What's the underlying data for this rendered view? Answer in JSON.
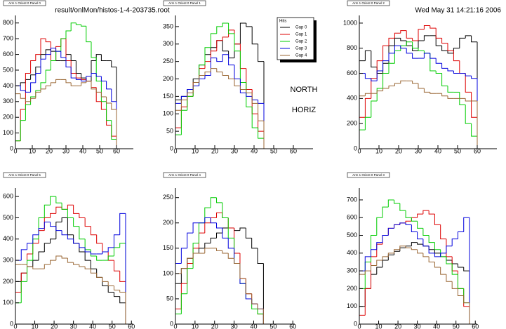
{
  "header": {
    "file": "result/onlMon/histos-1-4-203735.root",
    "date": "Wed May 31 14:21:16 2006"
  },
  "labels": [
    "NORTH",
    "HORIZ"
  ],
  "chart_data": [
    {
      "type": "histogram",
      "title": "Arm 1 Orient 0 Panel 0",
      "bins": [
        0,
        3,
        6,
        9,
        12,
        15,
        18,
        21,
        24,
        27,
        30,
        33,
        36,
        39,
        42,
        45,
        48,
        51,
        54,
        57,
        60,
        63
      ],
      "xlim": [
        0,
        70
      ],
      "xticks": [
        0,
        10,
        20,
        30,
        40,
        50,
        60
      ],
      "ylim": [
        0,
        848
      ],
      "yticks": [
        0,
        100,
        200,
        300,
        400,
        500,
        600,
        700,
        800
      ],
      "series": [
        {
          "color": "#000000",
          "values": [
            400,
            420,
            440,
            470,
            520,
            600,
            630,
            620,
            560,
            560,
            600,
            560,
            480,
            450,
            430,
            560,
            600,
            560,
            560,
            520,
            0
          ]
        },
        {
          "color": "#dd0000",
          "values": [
            50,
            250,
            480,
            560,
            600,
            700,
            680,
            560,
            650,
            700,
            560,
            480,
            450,
            440,
            430,
            390,
            300,
            250,
            150,
            80,
            0
          ]
        },
        {
          "color": "#00cc00",
          "values": [
            50,
            180,
            280,
            330,
            370,
            420,
            500,
            560,
            620,
            700,
            750,
            800,
            790,
            780,
            680,
            580,
            430,
            300,
            180,
            60,
            0
          ]
        },
        {
          "color": "#0000dd",
          "values": [
            400,
            370,
            360,
            420,
            480,
            570,
            600,
            640,
            620,
            580,
            520,
            450,
            440,
            430,
            460,
            480,
            460,
            430,
            380,
            300,
            0
          ]
        },
        {
          "color": "#996633",
          "values": [
            350,
            320,
            300,
            320,
            360,
            380,
            400,
            420,
            440,
            440,
            420,
            400,
            400,
            420,
            430,
            380,
            360,
            330,
            290,
            250,
            0
          ]
        }
      ]
    },
    {
      "type": "histogram",
      "title": "Arm 1 Orient 0 Panel 1",
      "bins": [
        0,
        3,
        6,
        9,
        12,
        15,
        18,
        21,
        24,
        27,
        30,
        33,
        36,
        39,
        42,
        45,
        48
      ],
      "xlim": [
        0,
        70
      ],
      "xticks": [
        0,
        10,
        20,
        30,
        40,
        50,
        60
      ],
      "ylim": [
        0,
        382
      ],
      "yticks": [
        0,
        50,
        100,
        150,
        200,
        250,
        300,
        350
      ],
      "legend": true,
      "legend_title": "Hits",
      "legend_position": "top-right",
      "series": [
        {
          "name": "Gap 0",
          "color": "#000000",
          "values": [
            140,
            150,
            170,
            200,
            240,
            270,
            290,
            310,
            280,
            260,
            300,
            360,
            350,
            300,
            250,
            0
          ]
        },
        {
          "name": "Gap 1",
          "color": "#dd0000",
          "values": [
            60,
            120,
            150,
            190,
            230,
            250,
            280,
            310,
            320,
            340,
            300,
            230,
            170,
            100,
            50,
            0
          ]
        },
        {
          "name": "Gap 2",
          "color": "#00cc00",
          "values": [
            40,
            110,
            150,
            180,
            240,
            290,
            330,
            350,
            360,
            330,
            280,
            190,
            120,
            60,
            30,
            0
          ]
        },
        {
          "name": "Gap 3",
          "color": "#0000dd",
          "values": [
            130,
            150,
            170,
            180,
            200,
            210,
            260,
            250,
            270,
            240,
            200,
            160,
            150,
            140,
            130,
            0
          ]
        },
        {
          "name": "Gap 4",
          "color": "#996633",
          "values": [
            110,
            140,
            160,
            190,
            210,
            220,
            230,
            220,
            210,
            200,
            180,
            170,
            160,
            130,
            80,
            0
          ]
        }
      ]
    },
    {
      "type": "histogram",
      "title": "Arm 1 Orient 0 Panel 2",
      "bins": [
        0,
        3,
        6,
        9,
        12,
        15,
        18,
        21,
        24,
        27,
        30,
        33,
        36,
        39,
        42,
        45,
        48,
        51,
        54,
        57,
        60,
        63
      ],
      "xlim": [
        0,
        70
      ],
      "xticks": [
        0,
        10,
        20,
        30,
        40,
        50,
        60
      ],
      "ylim": [
        0,
        1061
      ],
      "yticks": [
        0,
        200,
        400,
        600,
        800,
        1000
      ],
      "series": [
        {
          "color": "#000000",
          "values": [
            700,
            780,
            650,
            600,
            680,
            820,
            880,
            860,
            820,
            780,
            860,
            900,
            900,
            820,
            780,
            760,
            800,
            880,
            900,
            850,
            0
          ]
        },
        {
          "color": "#dd0000",
          "values": [
            250,
            400,
            560,
            700,
            820,
            880,
            920,
            940,
            880,
            860,
            950,
            980,
            960,
            880,
            840,
            780,
            700,
            600,
            450,
            250,
            0
          ]
        },
        {
          "color": "#00cc00",
          "values": [
            150,
            250,
            380,
            480,
            600,
            680,
            780,
            820,
            850,
            800,
            780,
            760,
            620,
            600,
            500,
            450,
            450,
            350,
            200,
            100,
            0
          ]
        },
        {
          "color": "#0000dd",
          "values": [
            600,
            560,
            540,
            620,
            700,
            760,
            820,
            800,
            760,
            720,
            720,
            760,
            720,
            680,
            640,
            620,
            600,
            600,
            580,
            560,
            0
          ]
        },
        {
          "color": "#996633",
          "values": [
            420,
            440,
            440,
            460,
            480,
            500,
            520,
            540,
            540,
            520,
            480,
            450,
            440,
            440,
            420,
            400,
            400,
            400,
            380,
            380,
            0
          ]
        }
      ]
    },
    {
      "type": "histogram",
      "title": "Arm 1 Orient 0 Panel 5",
      "bins": [
        0,
        3,
        6,
        9,
        12,
        15,
        18,
        21,
        24,
        27,
        30,
        33,
        36,
        39,
        42,
        45,
        48,
        51,
        54,
        57,
        60
      ],
      "xlim": [
        0,
        61
      ],
      "xticks": [
        0,
        10,
        20,
        30,
        40,
        50,
        60
      ],
      "ylim": [
        0,
        640
      ],
      "yticks": [
        0,
        100,
        200,
        300,
        400,
        500,
        600
      ],
      "series": [
        {
          "color": "#000000",
          "values": [
            200,
            240,
            270,
            300,
            340,
            380,
            400,
            480,
            500,
            420,
            380,
            340,
            300,
            260,
            220,
            180,
            150,
            130,
            100,
            0
          ]
        },
        {
          "color": "#dd0000",
          "values": [
            150,
            240,
            330,
            380,
            440,
            500,
            520,
            550,
            540,
            560,
            520,
            500,
            460,
            420,
            380,
            340,
            300,
            250,
            200,
            0
          ]
        },
        {
          "color": "#00cc00",
          "values": [
            100,
            200,
            300,
            400,
            500,
            560,
            600,
            570,
            540,
            500,
            460,
            400,
            350,
            320,
            300,
            300,
            320,
            360,
            380,
            0
          ]
        },
        {
          "color": "#0000dd",
          "values": [
            300,
            350,
            380,
            420,
            450,
            480,
            460,
            440,
            420,
            400,
            380,
            360,
            340,
            330,
            330,
            340,
            360,
            420,
            520,
            0
          ]
        },
        {
          "color": "#996633",
          "values": [
            280,
            280,
            270,
            260,
            260,
            280,
            300,
            320,
            310,
            290,
            280,
            270,
            260,
            240,
            220,
            200,
            180,
            160,
            150,
            0
          ]
        }
      ]
    },
    {
      "type": "histogram",
      "title": "Arm 1 Orient 0 Panel 4",
      "bins": [
        0,
        3,
        6,
        9,
        12,
        15,
        18,
        21,
        24,
        27,
        30,
        33,
        36,
        39,
        42,
        45,
        48
      ],
      "xlim": [
        0,
        61
      ],
      "xticks": [
        0,
        10,
        20,
        30,
        40,
        50,
        60
      ],
      "ylim": [
        0,
        269
      ],
      "yticks": [
        0,
        50,
        100,
        150,
        200,
        250
      ],
      "series": [
        {
          "color": "#000000",
          "values": [
            80,
            110,
            130,
            140,
            150,
            160,
            170,
            180,
            190,
            190,
            185,
            190,
            170,
            150,
            120,
            0
          ]
        },
        {
          "color": "#dd0000",
          "values": [
            30,
            80,
            120,
            150,
            180,
            200,
            210,
            220,
            210,
            190,
            140,
            90,
            60,
            40,
            20,
            0
          ]
        },
        {
          "color": "#00cc00",
          "values": [
            20,
            60,
            110,
            160,
            200,
            230,
            250,
            240,
            210,
            170,
            120,
            80,
            50,
            30,
            20,
            0
          ]
        },
        {
          "color": "#0000dd",
          "values": [
            120,
            150,
            180,
            200,
            200,
            210,
            200,
            190,
            170,
            150,
            120,
            80,
            50,
            40,
            30,
            0
          ]
        },
        {
          "color": "#996633",
          "values": [
            100,
            110,
            130,
            140,
            140,
            150,
            150,
            145,
            140,
            130,
            120,
            90,
            60,
            40,
            30,
            0
          ]
        }
      ]
    },
    {
      "type": "histogram",
      "title": "Arm 1 Orient 0 Panel 3",
      "bins": [
        0,
        3,
        6,
        9,
        12,
        15,
        18,
        21,
        24,
        27,
        30,
        33,
        36,
        39,
        42,
        45,
        48,
        51,
        54,
        57,
        60
      ],
      "xlim": [
        0,
        61
      ],
      "xticks": [
        0,
        10,
        20,
        30,
        40,
        50,
        60
      ],
      "ylim": [
        0,
        767
      ],
      "yticks": [
        0,
        100,
        200,
        300,
        400,
        500,
        600,
        700
      ],
      "series": [
        {
          "color": "#000000",
          "values": [
            100,
            200,
            280,
            320,
            360,
            390,
            410,
            430,
            440,
            460,
            450,
            440,
            420,
            400,
            380,
            360,
            340,
            320,
            300,
            0
          ]
        },
        {
          "color": "#dd0000",
          "values": [
            50,
            200,
            380,
            450,
            500,
            540,
            560,
            570,
            580,
            600,
            620,
            640,
            620,
            560,
            480,
            380,
            300,
            200,
            100,
            0
          ]
        },
        {
          "color": "#00cc00",
          "values": [
            200,
            350,
            500,
            600,
            660,
            700,
            680,
            640,
            600,
            580,
            540,
            500,
            460,
            420,
            380,
            340,
            280,
            200,
            120,
            0
          ]
        },
        {
          "color": "#0000dd",
          "values": [
            300,
            380,
            420,
            460,
            500,
            540,
            560,
            570,
            560,
            520,
            480,
            440,
            400,
            380,
            400,
            440,
            480,
            520,
            600,
            0
          ]
        },
        {
          "color": "#996633",
          "values": [
            280,
            300,
            330,
            360,
            380,
            400,
            420,
            440,
            430,
            420,
            400,
            380,
            350,
            320,
            280,
            240,
            200,
            160,
            120,
            0
          ]
        }
      ]
    }
  ]
}
